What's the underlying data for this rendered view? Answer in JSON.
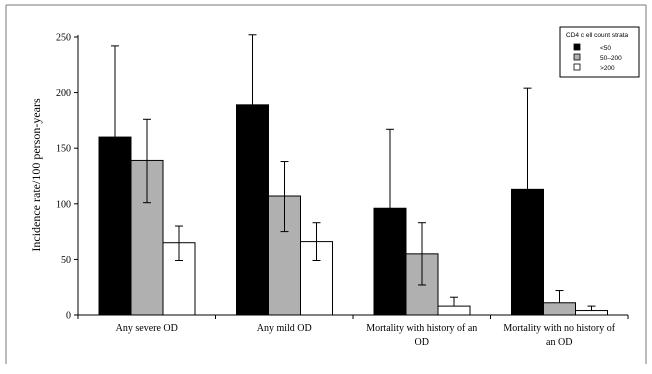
{
  "chart_data": {
    "type": "bar",
    "title": "",
    "xlabel": "",
    "ylabel": "Incidence rate/100 person-years",
    "ylim": [
      0,
      250
    ],
    "yticks": [
      0,
      50,
      100,
      150,
      200,
      250
    ],
    "categories": [
      [
        "Any severe OD"
      ],
      [
        "Any mild OD"
      ],
      [
        "Mortality with history of an",
        "OD"
      ],
      [
        "Mortality with no history of",
        "an OD"
      ]
    ],
    "legend": {
      "title": "CD4 c  ell count strata",
      "placement": "top-right"
    },
    "series": [
      {
        "name": "<50",
        "color": "#000000",
        "values": [
          160,
          189,
          96,
          113
        ],
        "error_upper": [
          242,
          252,
          167,
          204
        ],
        "error_lower": [
          null,
          null,
          null,
          null
        ]
      },
      {
        "name": "50–200",
        "color": "#b0b0b0",
        "values": [
          139,
          107,
          55,
          11
        ],
        "error_upper": [
          176,
          138,
          83,
          22
        ],
        "error_lower": [
          101,
          75,
          27,
          null
        ]
      },
      {
        "name": ">200",
        "color": "#ffffff",
        "values": [
          65,
          66,
          8,
          4
        ],
        "error_upper": [
          80,
          83,
          16,
          8
        ],
        "error_lower": [
          49,
          49,
          null,
          null
        ]
      }
    ]
  }
}
